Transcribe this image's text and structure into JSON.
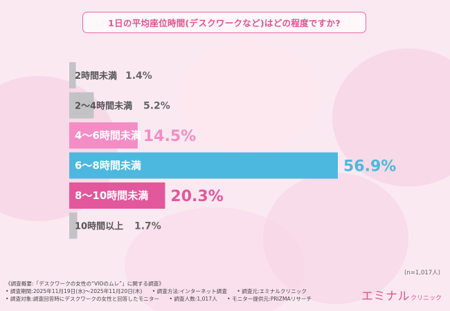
{
  "title": "1日の平均座位時間(デスクワークなど)はどの程度ですか?",
  "sample_note": "(n=1,017人)",
  "survey": {
    "summary": "《調査概要:「デスクワークの女性の“VIOのムレ”」に関する調査》",
    "period": "• 調査期間:2025年11月19日(水)〜2025年11月20日(木)",
    "method": "• 調査方法:インターネット調査",
    "source": "• 調査元:エミナルクリニック",
    "target": "• 調査対象:調査回答時にデスクワークの女性と回答したモニター",
    "count": "• 調査人数:1,017人",
    "provider": "• モニター提供元:PRIZMAリサーチ"
  },
  "logo": {
    "main": "エミナル",
    "sub": "クリニック"
  },
  "colors": {
    "accent": "#e0548e",
    "gray": "#c3c3c6",
    "pink_light": "#f48dc5",
    "blue": "#4cb8df",
    "pink": "#e3579c"
  },
  "chart_data": {
    "type": "bar",
    "orientation": "horizontal",
    "categories": [
      "2時間未満",
      "2〜4時間未満",
      "4〜6時間未満",
      "6〜8時間未満",
      "8〜10時間未満",
      "10時間以上"
    ],
    "values": [
      1.4,
      5.2,
      14.5,
      56.9,
      20.3,
      1.7
    ],
    "value_labels": [
      "1.4%",
      "5.2%",
      "14.5%",
      "56.9%",
      "20.3%",
      "1.7%"
    ],
    "unit": "%",
    "bar_colors": [
      "#c3c3c6",
      "#c3c3c6",
      "#f48dc5",
      "#4cb8df",
      "#e3579c",
      "#c3c3c6"
    ],
    "highlight": [
      false,
      false,
      true,
      true,
      true,
      false
    ],
    "grid": false,
    "legend": "none"
  }
}
